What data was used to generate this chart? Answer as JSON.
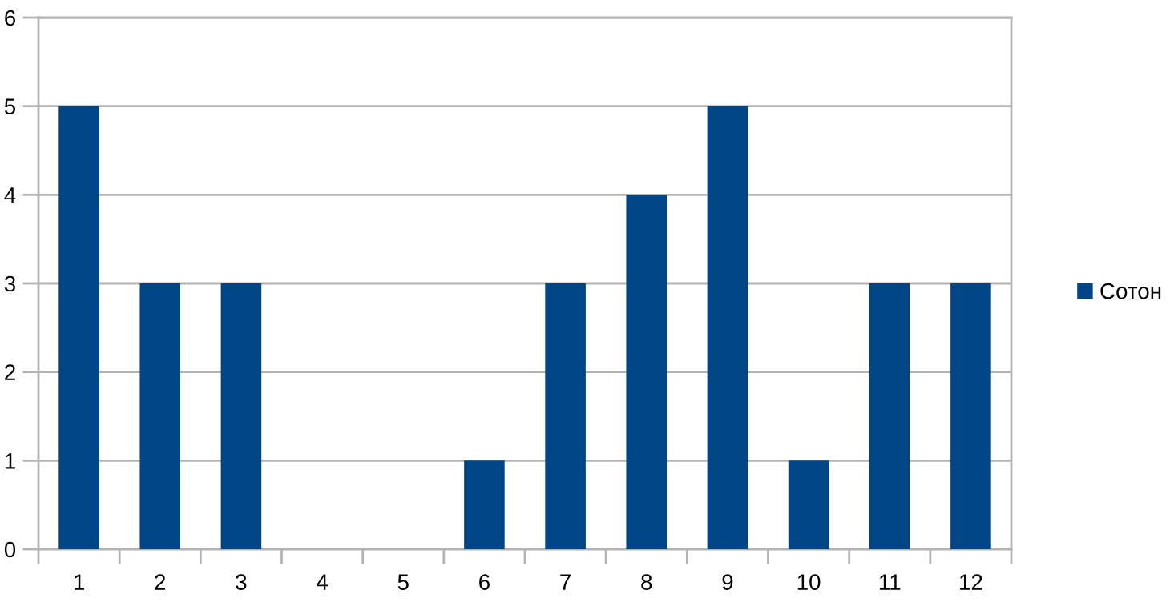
{
  "chart_data": {
    "type": "bar",
    "categories": [
      "1",
      "2",
      "3",
      "4",
      "5",
      "6",
      "7",
      "8",
      "9",
      "10",
      "11",
      "12"
    ],
    "series": [
      {
        "name": "Сотон",
        "color": "#004586",
        "values": [
          5,
          3,
          3,
          0,
          0,
          1,
          3,
          4,
          5,
          1,
          3,
          3
        ]
      }
    ],
    "ylim": [
      0,
      6
    ],
    "yticks": [
      0,
      1,
      2,
      3,
      4,
      5,
      6
    ],
    "grid": "y",
    "legend": "right"
  }
}
